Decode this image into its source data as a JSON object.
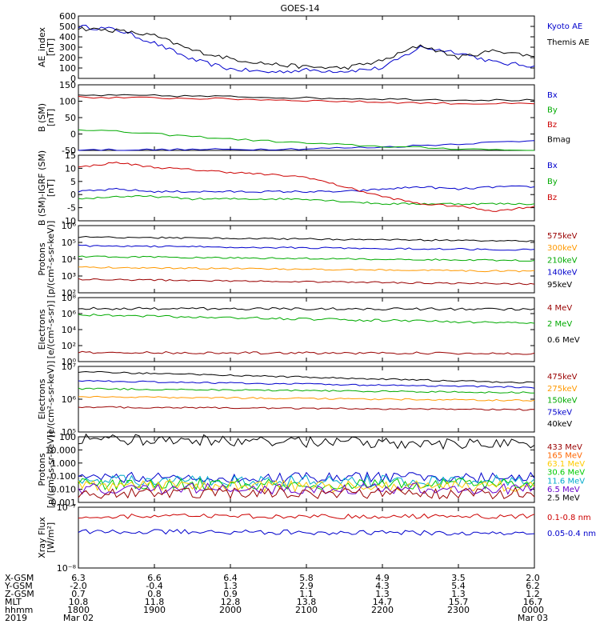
{
  "title": "GOES-14",
  "panels": [
    {
      "id": "ae",
      "ylabel": [
        "AE_index",
        "[nT]"
      ],
      "ticks": [
        "600",
        "500",
        "400",
        "300",
        "200",
        "100",
        "0"
      ],
      "legend": [
        {
          "text": "Kyoto AE",
          "color": "#0000cc"
        },
        {
          "text": "Themis AE",
          "color": "#000000"
        }
      ]
    },
    {
      "id": "bsm",
      "ylabel": [
        "B (SM)",
        "[nT]"
      ],
      "ticks": [
        "150",
        "100",
        "50",
        "0",
        "-50"
      ],
      "legend": [
        {
          "text": "Bx",
          "color": "#0000cc"
        },
        {
          "text": "By",
          "color": "#00aa00"
        },
        {
          "text": "Bz",
          "color": "#cc0000"
        },
        {
          "text": "Bmag",
          "color": "#000000"
        }
      ]
    },
    {
      "id": "bigrf",
      "ylabel": [
        "B (SM)-IGRF (SM)",
        "[nT]"
      ],
      "ticks": [
        "15",
        "10",
        "5",
        "0",
        "-5",
        "-10"
      ],
      "legend": [
        {
          "text": "Bx",
          "color": "#0000cc"
        },
        {
          "text": "By",
          "color": "#00aa00"
        },
        {
          "text": "Bz",
          "color": "#cc0000"
        }
      ]
    },
    {
      "id": "protons_low",
      "ylabel": [
        "Protons",
        "[p/(cm²-s-sr-keV)]"
      ],
      "ticks": [
        "10⁶",
        "10⁵",
        "10⁴",
        "10³",
        "10²"
      ],
      "legend": [
        {
          "text": "575keV",
          "color": "#990000"
        },
        {
          "text": "300keV",
          "color": "#ff9900"
        },
        {
          "text": "210keV",
          "color": "#00aa00"
        },
        {
          "text": "140keV",
          "color": "#0000cc"
        },
        {
          "text": "95keV",
          "color": "#000000"
        }
      ]
    },
    {
      "id": "electrons_high",
      "ylabel": [
        "Electrons",
        "[e/(cm²-s-sr)]"
      ],
      "ticks": [
        "10⁸",
        "10⁶",
        "10⁴",
        "10²",
        "10⁰"
      ],
      "legend": [
        {
          "text": "4 MeV",
          "color": "#990000"
        },
        {
          "text": "2 MeV",
          "color": "#00aa00"
        },
        {
          "text": "0.6 MeV",
          "color": "#000000"
        }
      ]
    },
    {
      "id": "electrons_low",
      "ylabel": [
        "Electrons",
        "[e/(cm²-s-sr-keV)]"
      ],
      "ticks": [
        "10⁷",
        "10⁶",
        "10⁵"
      ],
      "legend": [
        {
          "text": "475keV",
          "color": "#990000"
        },
        {
          "text": "275keV",
          "color": "#ff9900"
        },
        {
          "text": "150keV",
          "color": "#00aa00"
        },
        {
          "text": "75keV",
          "color": "#0000cc"
        },
        {
          "text": "40keV",
          "color": "#000000"
        }
      ]
    },
    {
      "id": "protons_high",
      "ylabel": [
        "Protons",
        "[p/(cm²-s-sr-keV)]"
      ],
      "ticks": [
        "100",
        "10.000",
        "1.000",
        "0.100",
        "0.010",
        "0.001"
      ],
      "legend": [
        {
          "text": "433 MeV",
          "color": "#990000"
        },
        {
          "text": "165 MeV",
          "color": "#ff6600"
        },
        {
          "text": "63.1 MeV",
          "color": "#ffcc00"
        },
        {
          "text": "30.6 MeV",
          "color": "#00cc00"
        },
        {
          "text": "11.6 MeV",
          "color": "#00aacc"
        },
        {
          "text": "6.5 MeV",
          "color": "#6600cc"
        },
        {
          "text": "2.5 MeV",
          "color": "#000000"
        }
      ]
    },
    {
      "id": "xray",
      "ylabel": [
        "Xray Flux",
        "[W/m²]"
      ],
      "ticks": [
        "10⁻⁷",
        "10⁻⁸"
      ],
      "legend": [
        {
          "text": "0.1-0.8 nm",
          "color": "#cc0000"
        },
        {
          "text": "0.05-0.4 nm",
          "color": "#0000cc"
        }
      ]
    }
  ],
  "ephemeris": {
    "labels": [
      "X-GSM",
      "Y-GSM",
      "Z-GSM",
      "MLT",
      "hhmm",
      "2019"
    ],
    "columns": [
      [
        "6.3",
        "-2.0",
        "0.7",
        "10.8",
        "1800",
        "Mar 02"
      ],
      [
        "6.6",
        "-0.4",
        "0.8",
        "11.8",
        "1900",
        ""
      ],
      [
        "6.4",
        "1.3",
        "0.9",
        "12.8",
        "2000",
        ""
      ],
      [
        "5.8",
        "2.9",
        "1.1",
        "13.8",
        "2100",
        ""
      ],
      [
        "4.9",
        "4.3",
        "1.3",
        "14.7",
        "2200",
        ""
      ],
      [
        "3.5",
        "5.4",
        "1.3",
        "15.7",
        "2300",
        ""
      ],
      [
        "2.0",
        "6.2",
        "1.2",
        "16.7",
        "0000",
        "Mar 03"
      ]
    ]
  },
  "chart_data": [
    {
      "type": "line",
      "panel": "ae",
      "ylim": [
        0,
        600
      ],
      "x_hours": [
        0,
        0.5,
        1,
        1.5,
        2,
        2.5,
        3,
        3.5,
        4,
        4.5,
        5,
        5.5,
        6
      ],
      "series": [
        {
          "name": "Kyoto AE",
          "color": "#0000cc",
          "values": [
            500,
            470,
            340,
            180,
            90,
            60,
            80,
            70,
            100,
            300,
            250,
            150,
            120
          ]
        },
        {
          "name": "Themis AE",
          "color": "#000000",
          "values": [
            480,
            460,
            410,
            270,
            190,
            140,
            110,
            100,
            170,
            320,
            200,
            270,
            210
          ]
        }
      ]
    },
    {
      "type": "line",
      "panel": "bsm",
      "ylim": [
        -50,
        150
      ],
      "x_hours": [
        0,
        1,
        2,
        3,
        4,
        5,
        6
      ],
      "series": [
        {
          "name": "Bx",
          "color": "#0000cc",
          "values": [
            -48,
            -48,
            -47,
            -45,
            -40,
            -30,
            -20
          ]
        },
        {
          "name": "By",
          "color": "#00aa00",
          "values": [
            15,
            0,
            -15,
            -28,
            -38,
            -45,
            -50
          ]
        },
        {
          "name": "Bz",
          "color": "#cc0000",
          "values": [
            112,
            110,
            107,
            102,
            97,
            93,
            92
          ]
        },
        {
          "name": "Bmag",
          "color": "#000000",
          "values": [
            118,
            117,
            114,
            110,
            107,
            104,
            103
          ]
        }
      ]
    },
    {
      "type": "line",
      "panel": "bigrf",
      "ylim": [
        -12,
        15
      ],
      "x_hours": [
        0,
        0.5,
        1,
        1.5,
        2,
        2.5,
        3,
        3.5,
        4,
        4.5,
        5,
        5.5,
        6
      ],
      "series": [
        {
          "name": "Bx",
          "color": "#0000cc",
          "values": [
            0,
            1,
            0,
            0,
            0,
            0,
            0,
            0,
            1,
            2,
            1,
            2,
            2
          ]
        },
        {
          "name": "By",
          "color": "#00aa00",
          "values": [
            -3,
            -2,
            -2,
            -3,
            -3,
            -3,
            -3,
            -4,
            -5,
            -5,
            -5,
            -5,
            -5
          ]
        },
        {
          "name": "Bz",
          "color": "#cc0000",
          "values": [
            10,
            12,
            10,
            9,
            8,
            7,
            6,
            2,
            -2,
            -5,
            -6,
            -8,
            -6
          ]
        }
      ]
    }
  ]
}
